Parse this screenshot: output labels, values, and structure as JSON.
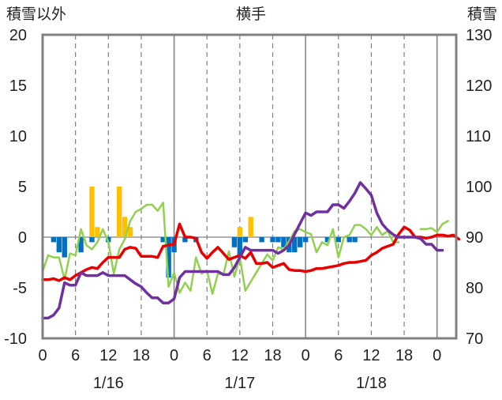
{
  "chart_data": {
    "type": "line",
    "title": "横手",
    "left_axis_label": "積雪以外",
    "right_axis_label": "積雪",
    "left_ylim": [
      -10,
      20
    ],
    "right_ylim": [
      70,
      130
    ],
    "left_ticks": [
      "20",
      "15",
      "10",
      "5",
      "0",
      "-5",
      "-10"
    ],
    "right_ticks": [
      "130",
      "120",
      "110",
      "100",
      "90",
      "80",
      "70"
    ],
    "x_hour_labels": [
      "0",
      "6",
      "12",
      "18",
      "0",
      "6",
      "12",
      "18",
      "0",
      "6",
      "12",
      "18",
      "0"
    ],
    "date_labels": [
      "1/16",
      "1/17",
      "1/18"
    ],
    "grid": "dashed vertical lines every 6 hours; solid lines at day boundaries",
    "colors": {
      "red_series": "#e60000",
      "purple_series": "#7030a0",
      "green_series": "#92d050",
      "orange_bars": "#ffc000",
      "blue_bars": "#0070c0"
    },
    "series": [
      {
        "color": "red",
        "axis": "left",
        "points": [
          [
            0,
            -4.2
          ],
          [
            1,
            -4.2
          ],
          [
            2,
            -4.1
          ],
          [
            3,
            -4.3
          ],
          [
            4,
            -4.0
          ],
          [
            5,
            -4.2
          ],
          [
            6,
            -3.8
          ],
          [
            7,
            -3.5
          ],
          [
            8,
            -3.2
          ],
          [
            9,
            -3.0
          ],
          [
            10,
            -3.1
          ],
          [
            11,
            -2.5
          ],
          [
            12,
            -2.0
          ],
          [
            13,
            -2.0
          ],
          [
            14,
            -2.0
          ],
          [
            15,
            -1.2
          ],
          [
            16,
            -1.0
          ],
          [
            17,
            -1.1
          ],
          [
            18,
            -1.9
          ],
          [
            19,
            -1.9
          ],
          [
            20,
            -1.9
          ],
          [
            21,
            -2.0
          ],
          [
            22,
            -0.9
          ],
          [
            23,
            -0.8
          ],
          [
            24,
            -0.7
          ],
          [
            25,
            1.3
          ],
          [
            26,
            0.0
          ],
          [
            27,
            0.0
          ],
          [
            28,
            -0.1
          ],
          [
            29,
            -1.5
          ],
          [
            30,
            -2.1
          ],
          [
            31,
            -1.5
          ],
          [
            32,
            -1.0
          ],
          [
            33,
            -1.6
          ],
          [
            34,
            -2.2
          ],
          [
            35,
            -2.0
          ],
          [
            36,
            -1.8
          ],
          [
            37,
            -2.1
          ],
          [
            38,
            -1.5
          ],
          [
            39,
            -2.6
          ],
          [
            40,
            -2.6
          ],
          [
            41,
            -2.5
          ],
          [
            42,
            -3.0
          ],
          [
            43,
            -2.8
          ],
          [
            44,
            -2.6
          ],
          [
            45,
            -3.2
          ],
          [
            46,
            -3.3
          ],
          [
            47,
            -3.3
          ],
          [
            48,
            -3.4
          ],
          [
            49,
            -3.3
          ],
          [
            50,
            -3.1
          ],
          [
            51,
            -3.1
          ],
          [
            52,
            -3.0
          ],
          [
            53,
            -2.9
          ],
          [
            54,
            -2.8
          ],
          [
            55,
            -2.6
          ],
          [
            56,
            -2.5
          ],
          [
            57,
            -2.5
          ],
          [
            58,
            -2.4
          ],
          [
            59,
            -2.3
          ],
          [
            60,
            -1.8
          ],
          [
            61,
            -1.5
          ],
          [
            62,
            -1.1
          ],
          [
            63,
            -0.9
          ],
          [
            64,
            -0.7
          ],
          [
            65,
            0.3
          ],
          [
            66,
            1.0
          ],
          [
            67,
            0.7
          ],
          [
            68,
            0.0
          ],
          [
            69,
            0.0
          ],
          [
            70,
            -0.1
          ],
          [
            71,
            0.0
          ],
          [
            72,
            0.2
          ],
          [
            73,
            0.2
          ],
          [
            74,
            0.1
          ],
          [
            75,
            0.2
          ],
          [
            76,
            -0.2
          ]
        ]
      },
      {
        "color": "purple",
        "axis": "right",
        "points": [
          [
            0,
            74.0
          ],
          [
            1,
            74.0
          ],
          [
            2,
            74.6
          ],
          [
            3,
            76.0
          ],
          [
            4,
            81.0
          ],
          [
            5,
            80.5
          ],
          [
            6,
            80.5
          ],
          [
            7,
            83.0
          ],
          [
            8,
            82.4
          ],
          [
            9,
            82.4
          ],
          [
            10,
            82.4
          ],
          [
            11,
            83.0
          ],
          [
            12,
            82.4
          ],
          [
            13,
            82.4
          ],
          [
            14,
            82.4
          ],
          [
            15,
            82.4
          ],
          [
            16,
            81.6
          ],
          [
            17,
            80.8
          ],
          [
            18,
            80.2
          ],
          [
            19,
            79.0
          ],
          [
            20,
            78.0
          ],
          [
            21,
            78.0
          ],
          [
            22,
            77.0
          ],
          [
            23,
            77.0
          ],
          [
            24,
            77.8
          ],
          [
            25,
            82.0
          ],
          [
            26,
            83.2
          ],
          [
            27,
            83.2
          ],
          [
            28,
            83.2
          ],
          [
            29,
            83.2
          ],
          [
            30,
            83.2
          ],
          [
            31,
            83.2
          ],
          [
            32,
            83.2
          ],
          [
            33,
            82.6
          ],
          [
            34,
            82.6
          ],
          [
            35,
            84.0
          ],
          [
            36,
            86.0
          ],
          [
            37,
            88.0
          ],
          [
            38,
            87.4
          ],
          [
            39,
            87.4
          ],
          [
            40,
            87.4
          ],
          [
            41,
            87.4
          ],
          [
            42,
            87.4
          ],
          [
            43,
            86.8
          ],
          [
            44,
            87.4
          ],
          [
            45,
            88.4
          ],
          [
            46,
            90.6
          ],
          [
            47,
            92.7
          ],
          [
            48,
            94.8
          ],
          [
            49,
            94.3
          ],
          [
            50,
            95.0
          ],
          [
            51,
            95.0
          ],
          [
            52,
            95.0
          ],
          [
            53,
            96.4
          ],
          [
            54,
            96.4
          ],
          [
            55,
            95.7
          ],
          [
            56,
            97.1
          ],
          [
            57,
            98.7
          ],
          [
            58,
            100.8
          ],
          [
            59,
            99.6
          ],
          [
            60,
            98.3
          ],
          [
            61,
            94.8
          ],
          [
            62,
            92.6
          ],
          [
            63,
            91.4
          ],
          [
            64,
            90.5
          ],
          [
            65,
            90.0
          ],
          [
            66,
            90.0
          ],
          [
            67,
            90.0
          ],
          [
            68,
            90.0
          ],
          [
            69,
            89.7
          ],
          [
            70,
            88.6
          ],
          [
            71,
            88.6
          ],
          [
            72,
            87.4
          ],
          [
            73,
            87.4
          ]
        ]
      },
      {
        "color": "green",
        "axis": "left",
        "points": [
          [
            0,
            -3.4
          ],
          [
            1,
            -1.8
          ],
          [
            2,
            -2.0
          ],
          [
            3,
            -2.0
          ],
          [
            4,
            -4.2
          ],
          [
            5,
            -1.6
          ],
          [
            6,
            -1.8
          ],
          [
            7,
            0.8
          ],
          [
            8,
            -0.8
          ],
          [
            9,
            -1.2
          ],
          [
            10,
            -0.5
          ],
          [
            11,
            0.8
          ],
          [
            12,
            -0.5
          ],
          [
            13,
            -3.6
          ],
          [
            14,
            -1.2
          ],
          [
            15,
            -0.2
          ],
          [
            16,
            1.6
          ],
          [
            17,
            2.5
          ],
          [
            18,
            2.8
          ],
          [
            19,
            3.2
          ],
          [
            20,
            3.2
          ],
          [
            21,
            2.6
          ],
          [
            22,
            3.4
          ],
          [
            23,
            -4.9
          ],
          [
            24,
            -3.5
          ],
          [
            25,
            -5.5
          ],
          [
            26,
            -4.5
          ],
          [
            27,
            -5.3
          ],
          [
            28,
            -2.0
          ],
          [
            29,
            -3.6
          ],
          [
            30,
            -3.3
          ],
          [
            31,
            -5.6
          ],
          [
            32,
            -3.6
          ],
          [
            33,
            -3.7
          ],
          [
            34,
            -1.4
          ],
          [
            35,
            -3.9
          ],
          [
            36,
            -2.0
          ],
          [
            37,
            -5.3
          ],
          [
            38,
            -4.4
          ],
          [
            39,
            -3.5
          ],
          [
            40,
            -2.6
          ],
          [
            41,
            -1.7
          ],
          [
            42,
            -2.3
          ],
          [
            43,
            -1.0
          ],
          [
            44,
            -1.2
          ],
          [
            45,
            -0.4
          ],
          [
            46,
            0.6
          ],
          [
            47,
            0.8
          ],
          [
            48,
            0.5
          ],
          [
            49,
            0.3
          ],
          [
            50,
            -1.5
          ],
          [
            51,
            -0.5
          ],
          [
            52,
            -0.8
          ],
          [
            53,
            0.8
          ],
          [
            54,
            -2.0
          ],
          [
            55,
            0.0
          ],
          [
            56,
            0.2
          ],
          [
            57,
            1.2
          ],
          [
            58,
            1.2
          ],
          [
            59,
            0.8
          ],
          [
            60,
            0.2
          ],
          [
            61,
            1.0
          ],
          [
            62,
            0.2
          ],
          [
            63,
            0.6
          ],
          [
            64,
            -0.5
          ],
          [
            65,
            -0.5
          ],
          [
            66,
            null
          ],
          [
            67,
            null
          ],
          [
            68,
            null
          ],
          [
            69,
            0.8
          ],
          [
            70,
            0.8
          ],
          [
            71,
            0.9
          ],
          [
            72,
            0.5
          ],
          [
            73,
            1.3
          ],
          [
            74,
            1.6
          ]
        ]
      }
    ],
    "bar_series": [
      {
        "color": "orange",
        "axis": "left",
        "hours": [
          9,
          10,
          14,
          15,
          16,
          36,
          38
        ],
        "values": [
          5.0,
          1.0,
          5.0,
          2.0,
          1.0,
          1.0,
          2.0
        ]
      },
      {
        "color": "blue",
        "axis": "left",
        "hours": [
          2,
          3,
          4,
          7,
          9,
          12,
          22,
          23,
          24,
          26,
          28,
          35,
          36,
          37,
          40,
          42,
          43,
          44,
          45,
          46,
          47,
          48,
          52,
          54,
          56,
          57
        ],
        "values": [
          -0.5,
          -1.5,
          -2.0,
          -1.5,
          -0.5,
          -0.5,
          -0.5,
          -4.0,
          -1.5,
          -0.5,
          -0.5,
          -1.0,
          -2.0,
          -0.5,
          -0.5,
          -0.5,
          -0.5,
          -1.0,
          -1.5,
          -1.5,
          -1.0,
          -0.5,
          -0.5,
          -0.5,
          -0.5,
          -0.5
        ]
      }
    ]
  }
}
